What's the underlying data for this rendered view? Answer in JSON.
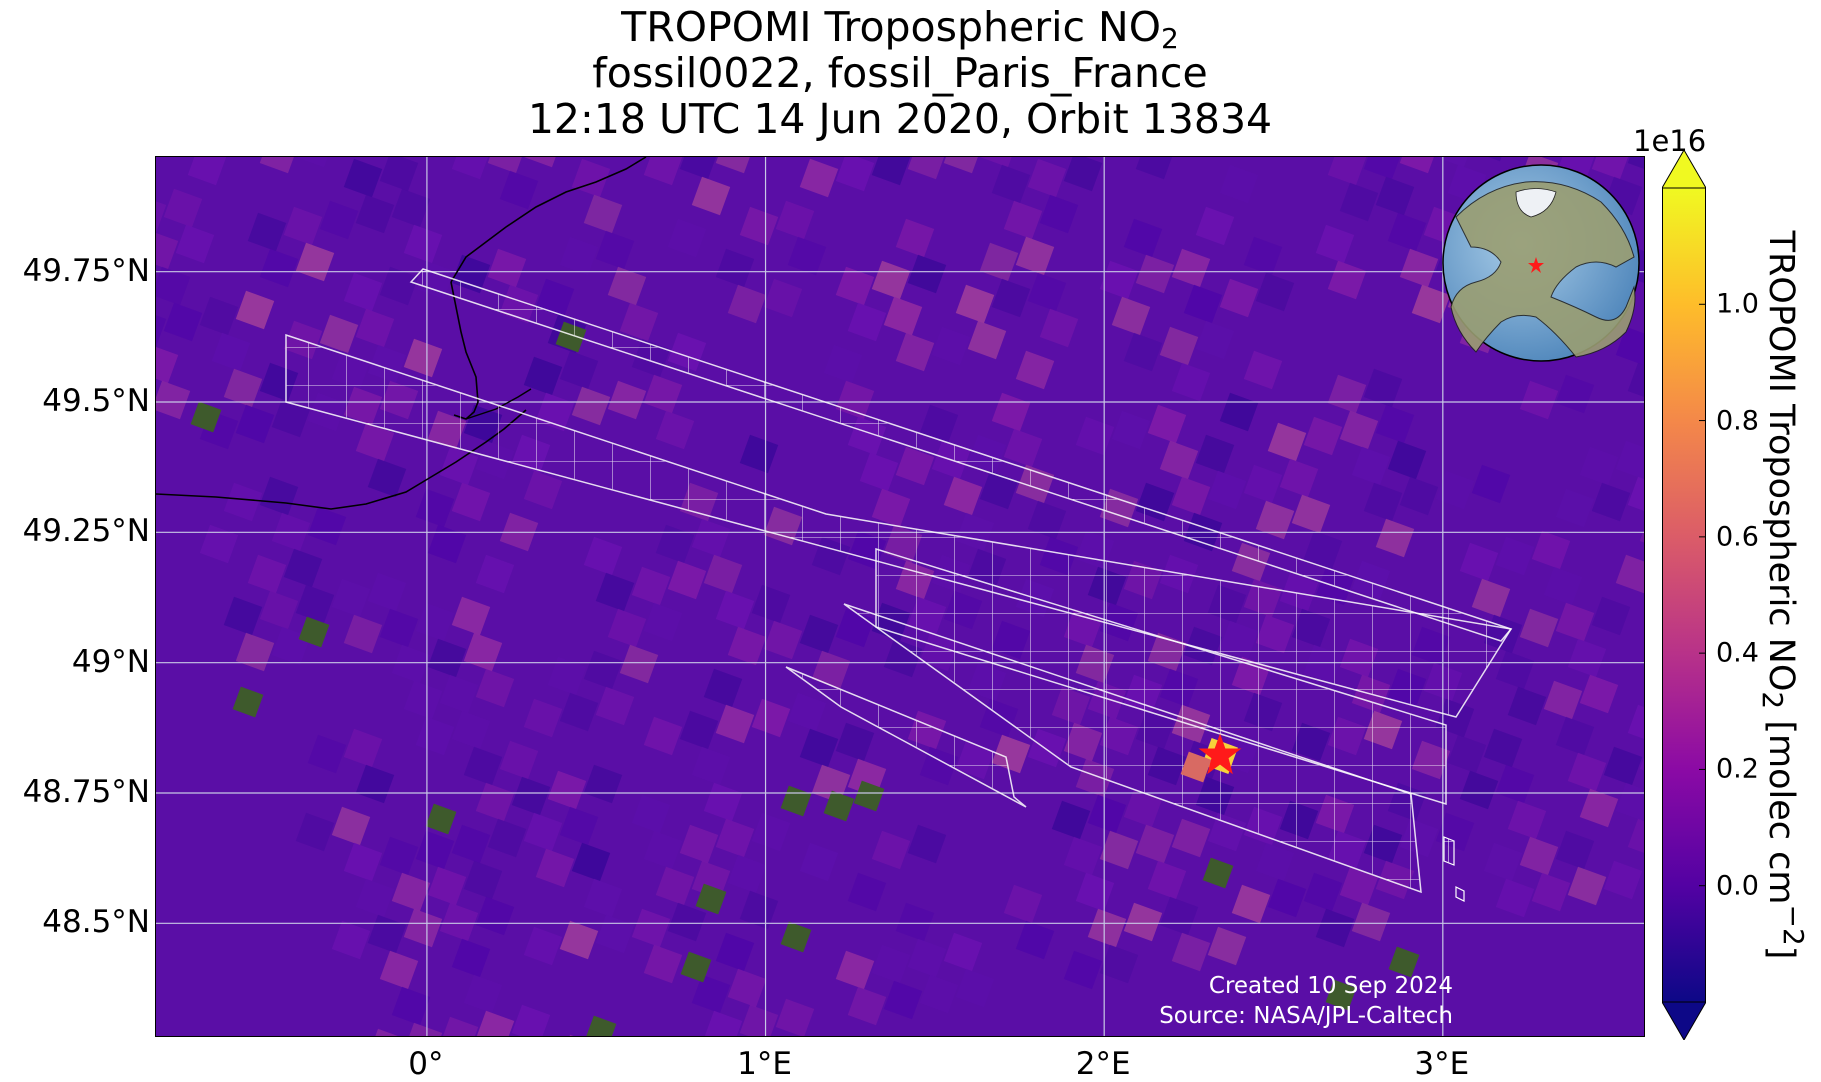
{
  "title": {
    "line1_main": "TROPOMI Tropospheric NO",
    "line1_sub": "2",
    "line2": "fossil0022, fossil_Paris_France",
    "line3": "12:18 UTC 14 Jun 2020, Orbit 13834"
  },
  "map": {
    "extent_lon": [
      -0.8,
      3.6
    ],
    "extent_lat": [
      48.28,
      49.97
    ],
    "target_name": "fossil_Paris_France",
    "target_marker": "red-star",
    "target_lonlat": [
      2.34,
      48.86
    ],
    "background_color": "#5a0ea6",
    "grid_color": "#c8c8e6",
    "footprint_color": "#ffffff",
    "marker_color": "#ff1a1a",
    "inset_globe": "globe-inset-icon"
  },
  "axes": {
    "y_ticks": [
      {
        "label": "49.75°N",
        "value": 49.75
      },
      {
        "label": "49.5°N",
        "value": 49.5
      },
      {
        "label": "49.25°N",
        "value": 49.25
      },
      {
        "label": "49°N",
        "value": 49.0
      },
      {
        "label": "48.75°N",
        "value": 48.75
      },
      {
        "label": "48.5°N",
        "value": 48.5
      }
    ],
    "x_ticks": [
      {
        "label": "0°",
        "value": 0
      },
      {
        "label": "1°E",
        "value": 1
      },
      {
        "label": "2°E",
        "value": 2
      },
      {
        "label": "3°E",
        "value": 3
      }
    ]
  },
  "colorbar": {
    "label_main": "TROPOMI Tropospheric NO",
    "label_sub": "2",
    "label_units": " [molec cm",
    "label_sup": "−2",
    "label_close": "]",
    "exponent": "1e16",
    "colormap": "plasma",
    "range": [
      -0.2,
      1.2
    ],
    "extend": "both",
    "ticks": [
      {
        "label": "0.0",
        "value": 0.0
      },
      {
        "label": "0.2",
        "value": 0.2
      },
      {
        "label": "0.4",
        "value": 0.4
      },
      {
        "label": "0.6",
        "value": 0.6
      },
      {
        "label": "0.8",
        "value": 0.8
      },
      {
        "label": "1.0",
        "value": 1.0
      }
    ],
    "colors": [
      "#0d0887",
      "#5302a3",
      "#8b0aa5",
      "#b83289",
      "#db5c68",
      "#f48849",
      "#febd2a",
      "#f0f921"
    ]
  },
  "credits": {
    "created": "Created 10 Sep 2024",
    "source": "Source: NASA/JPL-Caltech"
  }
}
